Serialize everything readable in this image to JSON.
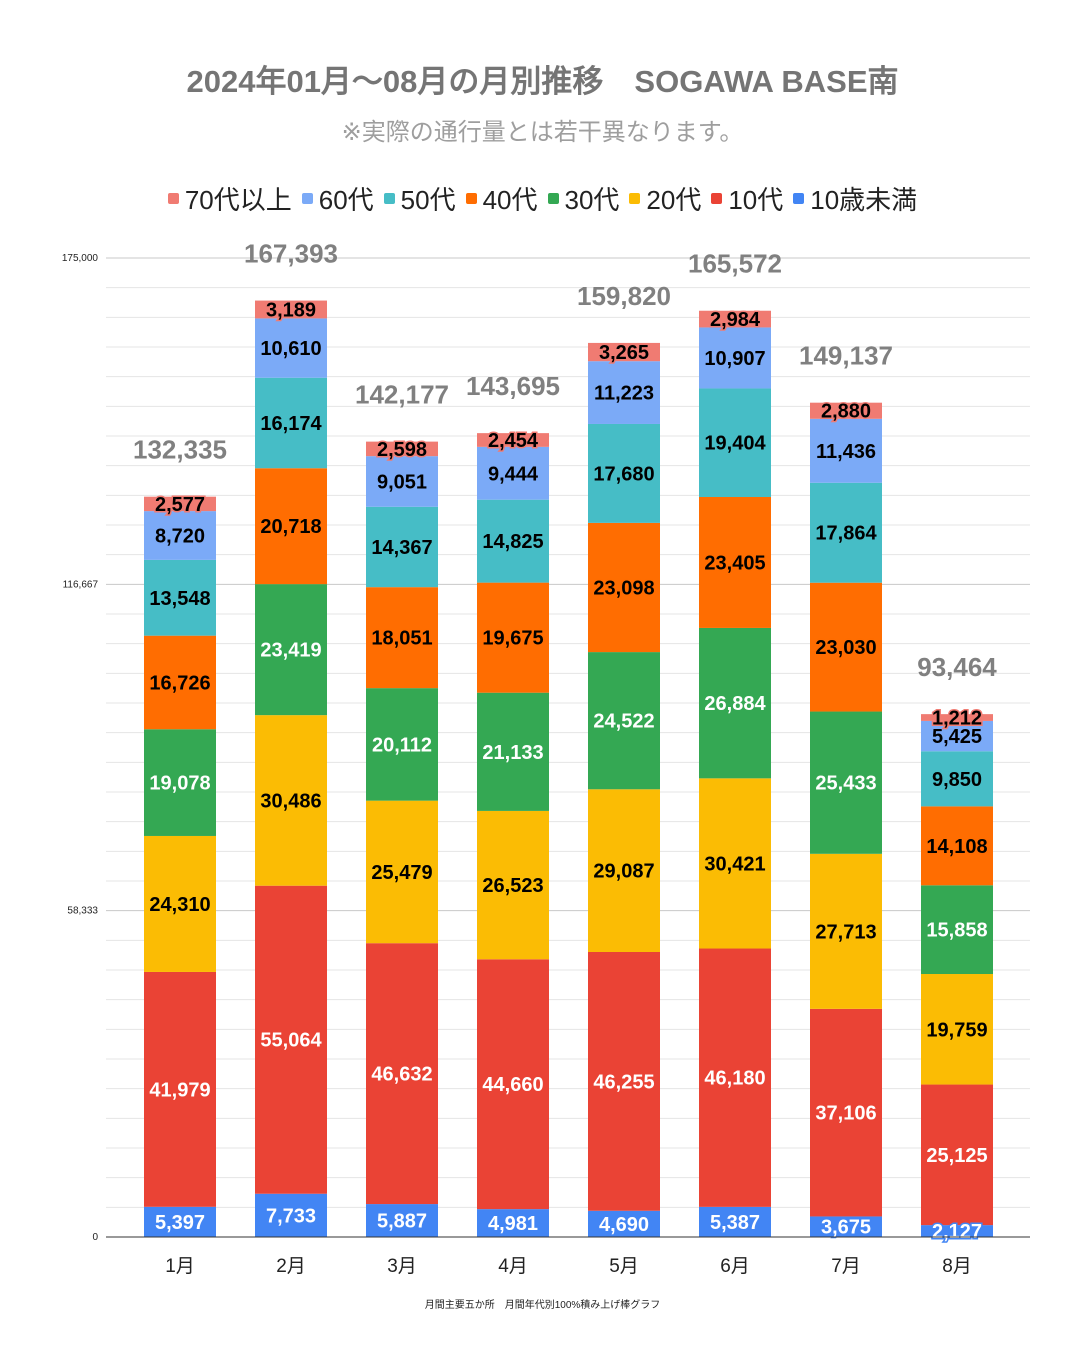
{
  "header": {
    "title": "2024年01月～08月の月別推移　SOGAWA BASE南",
    "subtitle": "※実際の通行量とは若干異なります。"
  },
  "footer": {
    "caption": "月間主要五か所　月間年代別100%積み上げ棒グラフ"
  },
  "chart_data": {
    "type": "bar",
    "stacked": true,
    "title": "2024年01月～08月の月別推移　SOGAWA BASE南",
    "subtitle": "※実際の通行量とは若干異なります。",
    "xlabel": "",
    "ylabel": "",
    "ylim": [
      0,
      175000
    ],
    "yticks": [
      0,
      58333,
      116667,
      175000
    ],
    "ytick_labels": [
      "0",
      "58,333",
      "116,667",
      "175,000"
    ],
    "grid": true,
    "legend_position": "top",
    "categories": [
      "1月",
      "2月",
      "3月",
      "4月",
      "5月",
      "6月",
      "7月",
      "8月"
    ],
    "totals": [
      132335,
      167393,
      142177,
      143695,
      159820,
      165572,
      149137,
      93464
    ],
    "total_labels": [
      "132,335",
      "167,393",
      "142,177",
      "143,695",
      "159,820",
      "165,572",
      "149,137",
      "93,464"
    ],
    "series": [
      {
        "name": "10歳未満",
        "color": "#4285f4",
        "label_color": "#ffffff",
        "values": [
          5397,
          7733,
          5887,
          4981,
          4690,
          5387,
          3675,
          2127
        ],
        "labels": [
          "5,397",
          "7,733",
          "5,887",
          "4,981",
          "4,690",
          "5,387",
          "3,675",
          "2,127"
        ]
      },
      {
        "name": "10代",
        "color": "#ea4335",
        "label_color": "#ffffff",
        "values": [
          41979,
          55064,
          46632,
          44660,
          46255,
          46180,
          37106,
          25125
        ],
        "labels": [
          "41,979",
          "55,064",
          "46,632",
          "44,660",
          "46,255",
          "46,180",
          "37,106",
          "25,125"
        ]
      },
      {
        "name": "20代",
        "color": "#fbbc04",
        "label_color": "#000000",
        "values": [
          24310,
          30486,
          25479,
          26523,
          29087,
          30421,
          27713,
          19759
        ],
        "labels": [
          "24,310",
          "30,486",
          "25,479",
          "26,523",
          "29,087",
          "30,421",
          "27,713",
          "19,759"
        ]
      },
      {
        "name": "30代",
        "color": "#34a853",
        "label_color": "#ffffff",
        "values": [
          19078,
          23419,
          20112,
          21133,
          24522,
          26884,
          25433,
          15858
        ],
        "labels": [
          "19,078",
          "23,419",
          "20,112",
          "21,133",
          "24,522",
          "26,884",
          "25,433",
          "15,858"
        ]
      },
      {
        "name": "40代",
        "color": "#ff6d01",
        "label_color": "#000000",
        "values": [
          16726,
          20718,
          18051,
          19675,
          23098,
          23405,
          23030,
          14108
        ],
        "labels": [
          "16,726",
          "20,718",
          "18,051",
          "19,675",
          "23,098",
          "23,405",
          "23,030",
          "14,108"
        ]
      },
      {
        "name": "50代",
        "color": "#46bdc6",
        "label_color": "#000000",
        "values": [
          13548,
          16174,
          14367,
          14825,
          17680,
          19404,
          17864,
          9850
        ],
        "labels": [
          "13,548",
          "16,174",
          "14,367",
          "14,825",
          "17,680",
          "19,404",
          "17,864",
          "9,850"
        ]
      },
      {
        "name": "60代",
        "color": "#7baaf7",
        "label_color": "#000000",
        "values": [
          8720,
          10610,
          9051,
          9444,
          11223,
          10907,
          11436,
          5425
        ],
        "labels": [
          "8,720",
          "10,610",
          "9,051",
          "9,444",
          "11,223",
          "10,907",
          "11,436",
          "5,425"
        ]
      },
      {
        "name": "70代以上",
        "color": "#f07b72",
        "label_color": "#000000",
        "values": [
          2577,
          3189,
          2598,
          2454,
          3265,
          2984,
          2880,
          1212
        ],
        "labels": [
          "2,577",
          "3,189",
          "2,598",
          "2,454",
          "3,265",
          "2,984",
          "2,880",
          "1,212"
        ]
      }
    ],
    "legend_order": [
      "70代以上",
      "60代",
      "50代",
      "40代",
      "30代",
      "20代",
      "10代",
      "10歳未満"
    ]
  }
}
